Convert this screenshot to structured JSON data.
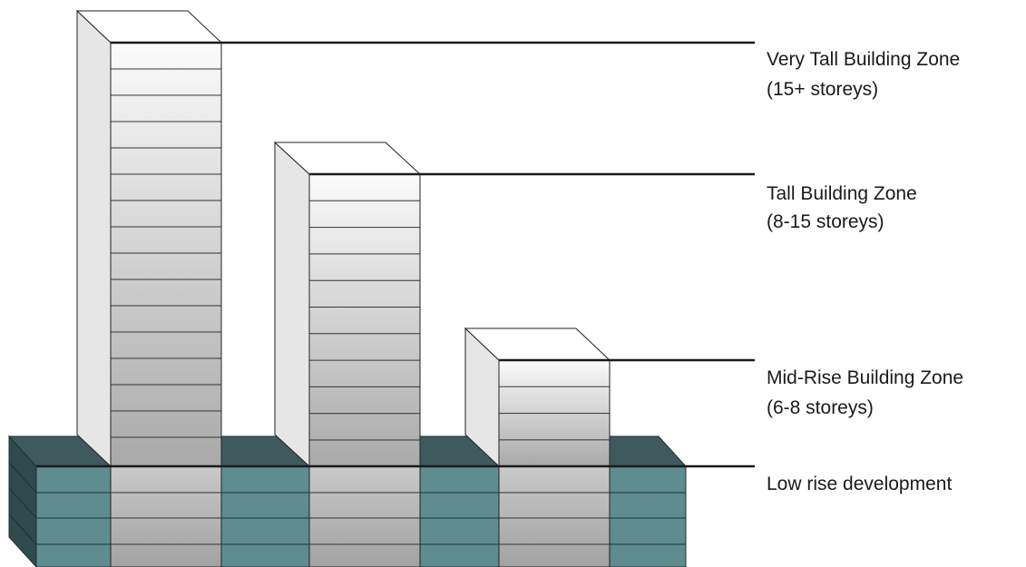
{
  "diagram": {
    "zones": [
      {
        "title": "Very Tall Building Zone",
        "subtitle": "(15+ storeys)"
      },
      {
        "title": "Tall Building Zone",
        "subtitle": "(8-15 storeys)"
      },
      {
        "title": "Mid-Rise Building Zone",
        "subtitle": "(6-8 storeys)"
      },
      {
        "title": "Low rise development"
      }
    ],
    "colors": {
      "podium_front": "#5f8c8f",
      "podium_top": "#3f5a5c",
      "podium_side": "#2f4a4c",
      "tower_front_light": "#fbfbfb",
      "tower_front_dark": "#a9a9a9",
      "tower_side": "#e6e6e6",
      "tower_top": "#ffffff",
      "line": "#1a1a1a"
    }
  }
}
